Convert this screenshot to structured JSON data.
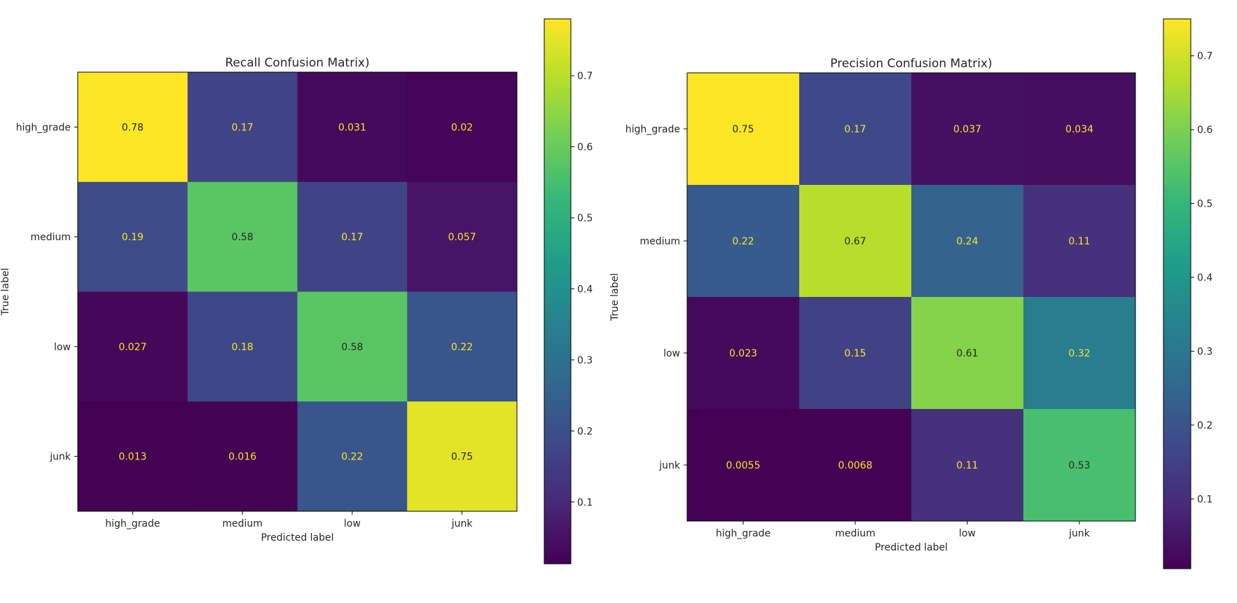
{
  "chart_data": [
    {
      "type": "heatmap",
      "title": "Recall Confusion Matrix)",
      "xlabel": "Predicted label",
      "ylabel": "True label",
      "x_categories": [
        "high_grade",
        "medium",
        "low",
        "junk"
      ],
      "y_categories": [
        "high_grade",
        "medium",
        "low",
        "junk"
      ],
      "values": [
        [
          0.78,
          0.17,
          0.031,
          0.02
        ],
        [
          0.19,
          0.58,
          0.17,
          0.057
        ],
        [
          0.027,
          0.18,
          0.58,
          0.22
        ],
        [
          0.013,
          0.016,
          0.22,
          0.75
        ]
      ],
      "value_labels": [
        [
          "0.78",
          "0.17",
          "0.031",
          "0.02"
        ],
        [
          "0.19",
          "0.58",
          "0.17",
          "0.057"
        ],
        [
          "0.027",
          "0.18",
          "0.58",
          "0.22"
        ],
        [
          "0.013",
          "0.016",
          "0.22",
          "0.75"
        ]
      ],
      "colormap": "viridis",
      "color_range": [
        0.013,
        0.78
      ],
      "colorbar_ticks": [
        0.1,
        0.2,
        0.3,
        0.4,
        0.5,
        0.6,
        0.7
      ],
      "colorbar_tick_labels": [
        "0.1",
        "0.2",
        "0.3",
        "0.4",
        "0.5",
        "0.6",
        "0.7"
      ]
    },
    {
      "type": "heatmap",
      "title": "Precision Confusion Matrix)",
      "xlabel": "Predicted label",
      "ylabel": "True label",
      "x_categories": [
        "high_grade",
        "medium",
        "low",
        "junk"
      ],
      "y_categories": [
        "high_grade",
        "medium",
        "low",
        "junk"
      ],
      "values": [
        [
          0.75,
          0.17,
          0.037,
          0.034
        ],
        [
          0.22,
          0.67,
          0.24,
          0.11
        ],
        [
          0.023,
          0.15,
          0.61,
          0.32
        ],
        [
          0.0055,
          0.0068,
          0.11,
          0.53
        ]
      ],
      "value_labels": [
        [
          "0.75",
          "0.17",
          "0.037",
          "0.034"
        ],
        [
          "0.22",
          "0.67",
          "0.24",
          "0.11"
        ],
        [
          "0.023",
          "0.15",
          "0.61",
          "0.32"
        ],
        [
          "0.0055",
          "0.0068",
          "0.11",
          "0.53"
        ]
      ],
      "colormap": "viridis",
      "color_range": [
        0.0055,
        0.75
      ],
      "colorbar_ticks": [
        0.1,
        0.2,
        0.3,
        0.4,
        0.5,
        0.6,
        0.7
      ],
      "colorbar_tick_labels": [
        "0.1",
        "0.2",
        "0.3",
        "0.4",
        "0.5",
        "0.6",
        "0.7"
      ]
    }
  ],
  "colors": {
    "background": "#ffffff",
    "text_dark": "#262626",
    "text_light": "#fde725",
    "axis": "#000000"
  }
}
